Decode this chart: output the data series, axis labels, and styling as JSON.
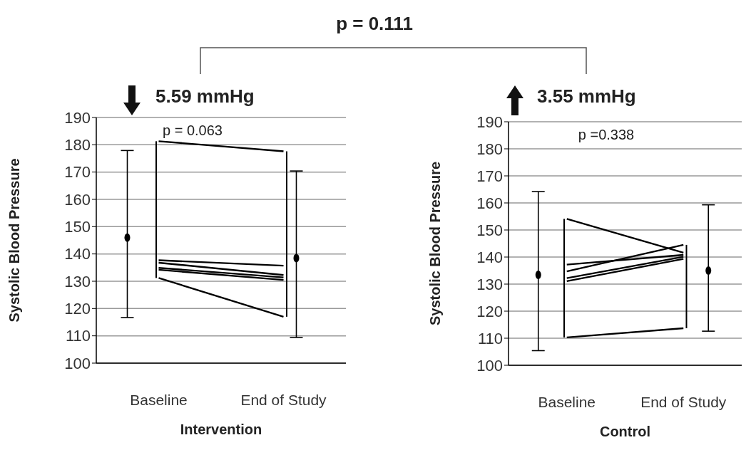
{
  "chart_data": [
    {
      "type": "line",
      "xlabel": "Intervention",
      "ylabel": "Systolic Blood Pressure",
      "categories": [
        "Baseline",
        "End of Study"
      ],
      "ylim": [
        100,
        190
      ],
      "yticks": [
        100,
        110,
        120,
        130,
        140,
        150,
        160,
        170,
        180,
        190
      ],
      "grid": "y",
      "marker": "none",
      "annotations": [
        "p = 0.111",
        "5.59 mmHg",
        "p = 0.063"
      ],
      "series": [
        {
          "color": "#000000",
          "values": [
            181.3,
            177.6
          ]
        },
        {
          "color": "#000000",
          "values": [
            137.7,
            135.7
          ]
        },
        {
          "color": "#000000",
          "values": [
            136.8,
            132.3
          ]
        },
        {
          "color": "#000000",
          "values": [
            134.9,
            131.4
          ]
        },
        {
          "color": "#000000",
          "values": [
            134.2,
            130.5
          ]
        },
        {
          "color": "#000000",
          "values": [
            131.2,
            117.0
          ]
        },
        {
          "type": "bar",
          "color": "#000000",
          "base": [
            131.2,
            117.0
          ],
          "values": [
            50.1,
            60.6
          ]
        },
        {
          "type": "scatter",
          "marker": "circle",
          "color": "#000000",
          "x": [
            "Baseline",
            "End of Study"
          ],
          "values": [
            146.0,
            138.5
          ],
          "errors": [
            [
              116.7,
              177.9
            ],
            [
              109.4,
              170.4
            ]
          ]
        }
      ]
    },
    {
      "type": "line",
      "xlabel": "Control",
      "ylabel": "Systolic Blood Pressure",
      "categories": [
        "Baseline",
        "End of Study"
      ],
      "ylim": [
        100,
        190
      ],
      "yticks": [
        100,
        110,
        120,
        130,
        140,
        150,
        160,
        170,
        180,
        190
      ],
      "grid": "y",
      "marker": "none",
      "annotations": [
        "3.55 mmHg",
        "p =0.338"
      ],
      "series": [
        {
          "color": "#000000",
          "values": [
            154.1,
            141.6
          ]
        },
        {
          "color": "#000000",
          "values": [
            137.2,
            140.8
          ]
        },
        {
          "color": "#000000",
          "values": [
            134.7,
            144.5
          ]
        },
        {
          "color": "#000000",
          "values": [
            132.2,
            140.1
          ]
        },
        {
          "color": "#000000",
          "values": [
            131.1,
            139.3
          ]
        },
        {
          "color": "#000000",
          "values": [
            110.3,
            113.7
          ]
        },
        {
          "type": "bar",
          "color": "#000000",
          "base": [
            110.3,
            113.7
          ],
          "values": [
            43.8,
            30.8
          ]
        },
        {
          "type": "scatter",
          "marker": "circle",
          "color": "#000000",
          "x": [
            "Baseline",
            "End of Study"
          ],
          "values": [
            133.4,
            135.0
          ],
          "errors": [
            [
              105.4,
              164.2
            ],
            [
              112.6,
              159.3
            ]
          ]
        }
      ]
    }
  ]
}
